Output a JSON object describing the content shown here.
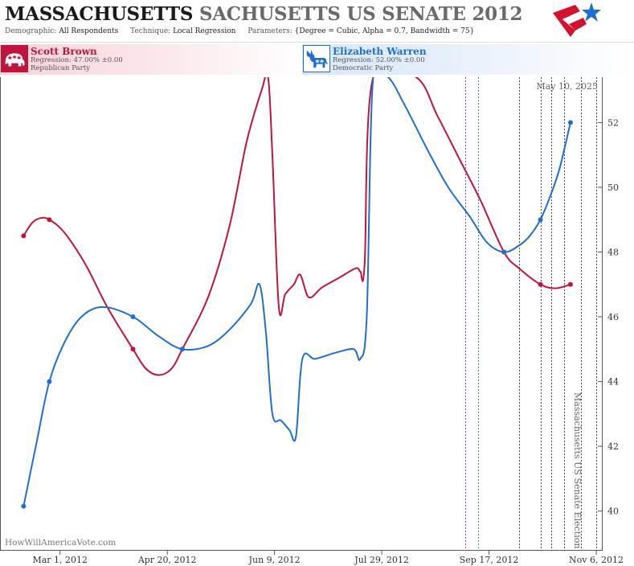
{
  "header": {
    "title_main": "MASSACHUSETTS",
    "title_sub": "SACHUSETTS US SENATE 2012",
    "demographic_label": "Demographic:",
    "demographic_value": "All Respondents",
    "technique_label": "Technique:",
    "technique_value": "Local Regression",
    "parameters_label": "Parameters:",
    "parameters_value": "{Degree = Cubic, Alpha = 0.7, Bandwidth = 75}",
    "logo_icon": "star-flag-logo-icon"
  },
  "candidates": [
    {
      "name": "Scott Brown",
      "regression": "Regression: 47.00% ±0.00",
      "party": "Republican Party",
      "color": "#c0143c",
      "icon": "elephant-icon"
    },
    {
      "name": "Elizabeth Warren",
      "regression": "Regression: 52.00% ±0.00",
      "party": "Democratic Party",
      "color": "#1f6fd1",
      "icon": "donkey-icon"
    }
  ],
  "chart_data": {
    "type": "line",
    "date_label": "May 10, 2025",
    "watermark": "HowWillAmericaVote.com",
    "election_label": "Massachusetts US Senate Election",
    "x_range": [
      "2012-02-02",
      "2012-11-09"
    ],
    "ylim": [
      38.8,
      53.4
    ],
    "y_ticks": [
      40,
      42,
      44,
      46,
      48,
      50,
      52
    ],
    "x_ticks": [
      {
        "date": "2012-03-01",
        "label": "Mar 1, 2012"
      },
      {
        "date": "2012-04-20",
        "label": "Apr 20, 2012"
      },
      {
        "date": "2012-06-09",
        "label": "Jun 9, 2012"
      },
      {
        "date": "2012-07-29",
        "label": "Jul 29, 2012"
      },
      {
        "date": "2012-09-17",
        "label": "Sep 17, 2012"
      },
      {
        "date": "2012-11-06",
        "label": "Nov 6, 2012"
      }
    ],
    "event_lines": [
      {
        "date": "2012-09-06",
        "color": "#8a2bb0"
      },
      {
        "date": "2012-09-12",
        "color": "#2a7f8a"
      },
      {
        "date": "2012-10-01",
        "color": "#333333"
      },
      {
        "date": "2012-10-11",
        "color": "#333333"
      },
      {
        "date": "2012-10-16",
        "color": "#333333"
      },
      {
        "date": "2012-10-22",
        "color": "#333333"
      },
      {
        "date": "2012-10-30",
        "color": "#333333"
      },
      {
        "date": "2012-11-06",
        "color": "#333333"
      }
    ],
    "series": [
      {
        "name": "Scott Brown",
        "color": "#c0143c",
        "points": [
          [
            "2012-02-13",
            48.5
          ],
          [
            "2012-02-25",
            49.0
          ],
          [
            "2012-04-04",
            45.0
          ],
          [
            "2012-04-27",
            45.0
          ],
          [
            "2012-09-24",
            48.0
          ],
          [
            "2012-10-11",
            47.0
          ],
          [
            "2012-10-25",
            47.0
          ]
        ],
        "curve": [
          [
            "2012-02-13",
            48.5
          ],
          [
            "2012-02-17",
            48.9
          ],
          [
            "2012-02-21",
            49.05
          ],
          [
            "2012-02-25",
            49.0
          ],
          [
            "2012-03-03",
            48.6
          ],
          [
            "2012-03-13",
            47.6
          ],
          [
            "2012-03-23",
            46.3
          ],
          [
            "2012-04-04",
            45.0
          ],
          [
            "2012-04-10",
            44.4
          ],
          [
            "2012-04-16",
            44.2
          ],
          [
            "2012-04-22",
            44.4
          ],
          [
            "2012-04-27",
            45.0
          ],
          [
            "2012-05-09",
            46.6
          ],
          [
            "2012-05-19",
            48.8
          ],
          [
            "2012-05-27",
            51.4
          ],
          [
            "2012-06-03",
            53.0
          ],
          [
            "2012-06-06",
            53.4
          ],
          [
            "2012-06-08",
            51.0
          ],
          [
            "2012-06-11",
            46.3
          ],
          [
            "2012-06-14",
            46.7
          ],
          [
            "2012-06-18",
            47.0
          ],
          [
            "2012-06-21",
            47.3
          ],
          [
            "2012-06-25",
            46.6
          ],
          [
            "2012-07-01",
            46.9
          ],
          [
            "2012-07-09",
            47.2
          ],
          [
            "2012-07-17",
            47.5
          ],
          [
            "2012-07-19",
            47.4
          ],
          [
            "2012-07-21",
            47.6
          ],
          [
            "2012-07-25",
            53.4
          ],
          [
            "2012-08-14",
            53.4
          ],
          [
            "2012-08-24",
            52.2
          ],
          [
            "2012-09-03",
            50.9
          ],
          [
            "2012-09-13",
            49.6
          ],
          [
            "2012-09-24",
            48.0
          ],
          [
            "2012-10-01",
            47.5
          ],
          [
            "2012-10-11",
            47.0
          ],
          [
            "2012-10-18",
            46.88
          ],
          [
            "2012-10-25",
            47.0
          ]
        ]
      },
      {
        "name": "Elizabeth Warren",
        "color": "#1f6fd1",
        "points": [
          [
            "2012-02-13",
            40.15
          ],
          [
            "2012-02-25",
            44.0
          ],
          [
            "2012-04-04",
            46.0
          ],
          [
            "2012-04-27",
            45.0
          ],
          [
            "2012-09-24",
            48.0
          ],
          [
            "2012-10-11",
            49.0
          ],
          [
            "2012-10-25",
            52.0
          ]
        ],
        "curve": [
          [
            "2012-02-13",
            40.15
          ],
          [
            "2012-02-19",
            42.1
          ],
          [
            "2012-02-25",
            44.0
          ],
          [
            "2012-03-03",
            45.2
          ],
          [
            "2012-03-11",
            46.0
          ],
          [
            "2012-03-21",
            46.3
          ],
          [
            "2012-04-04",
            46.0
          ],
          [
            "2012-04-16",
            45.4
          ],
          [
            "2012-04-27",
            45.0
          ],
          [
            "2012-05-09",
            45.1
          ],
          [
            "2012-05-19",
            45.6
          ],
          [
            "2012-05-29",
            46.4
          ],
          [
            "2012-06-02",
            47.0
          ],
          [
            "2012-06-05",
            45.5
          ],
          [
            "2012-06-08",
            43.0
          ],
          [
            "2012-06-12",
            42.8
          ],
          [
            "2012-06-16",
            42.5
          ],
          [
            "2012-06-19",
            42.3
          ],
          [
            "2012-06-22",
            44.7
          ],
          [
            "2012-06-28",
            44.7
          ],
          [
            "2012-07-08",
            44.9
          ],
          [
            "2012-07-16",
            45.0
          ],
          [
            "2012-07-19",
            44.7
          ],
          [
            "2012-07-22",
            46.0
          ],
          [
            "2012-07-25",
            53.4
          ],
          [
            "2012-08-01",
            53.4
          ],
          [
            "2012-08-09",
            52.5
          ],
          [
            "2012-08-19",
            51.2
          ],
          [
            "2012-08-29",
            50.0
          ],
          [
            "2012-09-08",
            49.1
          ],
          [
            "2012-09-16",
            48.3
          ],
          [
            "2012-09-24",
            48.0
          ],
          [
            "2012-10-01",
            48.2
          ],
          [
            "2012-10-06",
            48.5
          ],
          [
            "2012-10-11",
            49.0
          ],
          [
            "2012-10-16",
            49.8
          ],
          [
            "2012-10-20",
            50.6
          ],
          [
            "2012-10-25",
            52.0
          ]
        ]
      }
    ]
  }
}
